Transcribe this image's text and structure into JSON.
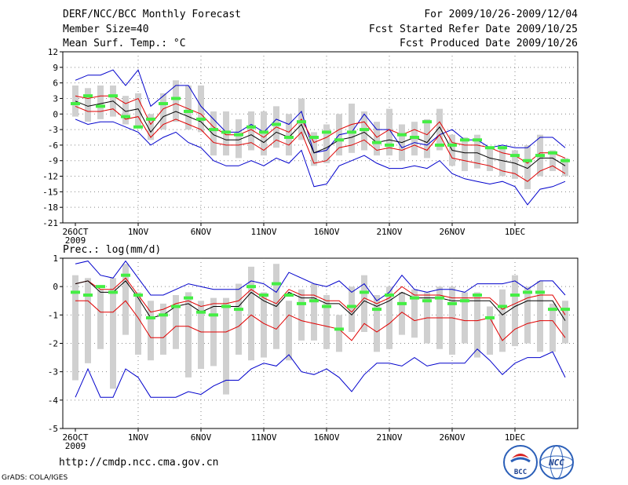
{
  "header": {
    "title": "DERF/NCC/BCC Monthly Forecast",
    "member": "Member Size=40",
    "variable1": "Mean Surf. Temp.: °C",
    "period": "For 2009/10/26-2009/12/04",
    "refer": "Fcst Started Refer Date 2009/10/25",
    "produced": "Fcst Produced Date 2009/10/26"
  },
  "footer": {
    "url": "http://cmdp.ncc.cma.gov.cn",
    "grads": "GrADS: COLA/IGES",
    "logo1": "BCC",
    "logo2": "NCC"
  },
  "colors": {
    "mean": "#000000",
    "spread": "#e00000",
    "extreme": "#0000cc",
    "obs": "#44ee44",
    "box": "#d0d0d0"
  },
  "chart_data": [
    {
      "type": "line",
      "title": "Mean Surf. Temp.: °C",
      "x": [
        1,
        2,
        3,
        4,
        5,
        6,
        7,
        8,
        9,
        10,
        11,
        12,
        13,
        14,
        15,
        16,
        17,
        18,
        19,
        20,
        21,
        22,
        23,
        24,
        25,
        26,
        27,
        28,
        29,
        30,
        31,
        32,
        33,
        34,
        35,
        36,
        37,
        38,
        39,
        40
      ],
      "xticks": [
        {
          "day": 1,
          "label": "26OCT",
          "sub": "2009"
        },
        {
          "day": 6,
          "label": "1NOV"
        },
        {
          "day": 11,
          "label": "6NOV"
        },
        {
          "day": 16,
          "label": "11NOV"
        },
        {
          "day": 21,
          "label": "16NOV"
        },
        {
          "day": 26,
          "label": "21NOV"
        },
        {
          "day": 31,
          "label": "26NOV"
        },
        {
          "day": 36,
          "label": "1DEC"
        }
      ],
      "ylim": [
        -21,
        12
      ],
      "yticks": [
        12,
        9,
        6,
        3,
        0,
        -3,
        -6,
        -9,
        -12,
        -15,
        -18,
        -21
      ],
      "series": [
        {
          "name": "max",
          "color": "#0000cc",
          "values": [
            6.5,
            7.5,
            7.5,
            8.5,
            5.5,
            8.5,
            1.5,
            3.5,
            5.5,
            5.5,
            1.5,
            -1.0,
            -3.5,
            -3.5,
            -2.0,
            -3.5,
            -1.0,
            -2.0,
            0.5,
            -7.5,
            -7.0,
            -4.0,
            -3.5,
            0.0,
            -3.0,
            -3.0,
            -6.5,
            -5.5,
            -6.0,
            -4.0,
            -3.0,
            -5.0,
            -5.0,
            -6.5,
            -6.0,
            -6.5,
            -6.5,
            -4.5,
            -4.5,
            -6.5
          ]
        },
        {
          "name": "upper",
          "color": "#e00000",
          "values": [
            3.5,
            3.0,
            3.5,
            3.5,
            2.0,
            3.0,
            -2.0,
            1.0,
            2.0,
            1.0,
            0.0,
            -2.5,
            -4.0,
            -4.0,
            -3.0,
            -4.5,
            -2.5,
            -3.5,
            -1.0,
            -5.5,
            -4.5,
            -3.0,
            -2.0,
            -1.5,
            -4.5,
            -3.0,
            -4.0,
            -3.0,
            -4.0,
            -1.5,
            -5.5,
            -6.0,
            -6.0,
            -6.5,
            -7.5,
            -8.0,
            -9.5,
            -7.5,
            -7.5,
            -8.5
          ]
        },
        {
          "name": "mean",
          "color": "#000000",
          "values": [
            2.5,
            1.5,
            2.0,
            2.5,
            0.5,
            1.0,
            -3.5,
            -0.5,
            0.5,
            -0.5,
            -1.5,
            -4.0,
            -5.0,
            -5.0,
            -4.0,
            -5.5,
            -3.5,
            -4.5,
            -2.0,
            -7.5,
            -6.5,
            -5.0,
            -4.5,
            -3.5,
            -5.5,
            -5.0,
            -5.5,
            -4.5,
            -5.5,
            -2.5,
            -7.0,
            -7.5,
            -7.5,
            -8.5,
            -9.0,
            -9.5,
            -10.5,
            -8.5,
            -8.5,
            -10.0
          ]
        },
        {
          "name": "lower",
          "color": "#e00000",
          "values": [
            1.5,
            0.5,
            0.5,
            1.0,
            -1.0,
            -0.5,
            -4.5,
            -2.0,
            -1.0,
            -2.0,
            -3.0,
            -5.5,
            -6.0,
            -6.0,
            -5.5,
            -7.0,
            -5.0,
            -6.0,
            -3.5,
            -9.5,
            -9.0,
            -6.5,
            -6.0,
            -5.0,
            -7.0,
            -6.5,
            -7.0,
            -6.0,
            -7.0,
            -4.0,
            -8.5,
            -9.0,
            -9.5,
            -10.0,
            -11.0,
            -11.5,
            -13.0,
            -11.0,
            -10.0,
            -11.5
          ]
        },
        {
          "name": "min",
          "color": "#0000cc",
          "values": [
            -1.0,
            -2.0,
            -1.5,
            -1.5,
            -2.5,
            -3.5,
            -6.0,
            -4.5,
            -3.5,
            -5.5,
            -6.5,
            -9.0,
            -10.0,
            -10.0,
            -9.0,
            -10.0,
            -8.5,
            -9.5,
            -7.0,
            -14.0,
            -13.5,
            -10.0,
            -9.0,
            -8.0,
            -9.5,
            -10.5,
            -10.5,
            -10.0,
            -10.5,
            -9.0,
            -11.5,
            -12.5,
            -13.0,
            -13.5,
            -13.0,
            -14.0,
            -17.5,
            -14.5,
            -14.0,
            -13.0
          ]
        },
        {
          "name": "observed",
          "color": "#44ee44",
          "values": [
            2.0,
            3.5,
            1.5,
            3.5,
            -0.5,
            -2.5,
            -1.0,
            2.0,
            3.0,
            0.5,
            -1.0,
            -3.0,
            -3.5,
            -4.0,
            -2.5,
            -3.5,
            -2.0,
            -4.5,
            -1.5,
            -4.5,
            -3.5,
            -5.0,
            -3.5,
            -3.0,
            -5.5,
            -6.0,
            -4.0,
            -4.5,
            -1.5,
            -6.0,
            -6.0,
            -5.0,
            -5.0,
            -6.5,
            -6.5,
            -8.0,
            -9.0,
            -8.0,
            -7.5,
            -9.0
          ]
        }
      ],
      "boxes": [
        [
          -0.5,
          5.5
        ],
        [
          -1.5,
          5.0
        ],
        [
          -1.0,
          5.5
        ],
        [
          -0.5,
          5.5
        ],
        [
          -2.0,
          3.5
        ],
        [
          -2.5,
          4.0
        ],
        [
          -5.0,
          0.0
        ],
        [
          -3.0,
          4.0
        ],
        [
          -1.5,
          6.5
        ],
        [
          -3.0,
          5.5
        ],
        [
          -3.5,
          5.5
        ],
        [
          -8.0,
          0.5
        ],
        [
          -8.0,
          0.5
        ],
        [
          -8.5,
          -1.0
        ],
        [
          -7.0,
          0.5
        ],
        [
          -8.0,
          0.5
        ],
        [
          -6.5,
          1.5
        ],
        [
          -8.0,
          0.0
        ],
        [
          -5.0,
          3.0
        ],
        [
          -10.0,
          -3.5
        ],
        [
          -9.5,
          -2.0
        ],
        [
          -8.0,
          0.0
        ],
        [
          -7.5,
          2.0
        ],
        [
          -7.0,
          0.5
        ],
        [
          -8.0,
          -1.5
        ],
        [
          -8.0,
          1.0
        ],
        [
          -9.0,
          -2.0
        ],
        [
          -8.0,
          -1.5
        ],
        [
          -8.5,
          -1.0
        ],
        [
          -7.0,
          1.0
        ],
        [
          -10.0,
          -4.0
        ],
        [
          -11.0,
          -4.5
        ],
        [
          -10.5,
          -4.0
        ],
        [
          -11.0,
          -6.5
        ],
        [
          -12.0,
          -6.5
        ],
        [
          -12.5,
          -7.0
        ],
        [
          -14.5,
          -6.0
        ],
        [
          -12.0,
          -4.0
        ],
        [
          -11.0,
          -7.0
        ],
        [
          -12.0,
          -8.5
        ]
      ]
    },
    {
      "type": "line",
      "title": "Prec.: log(mm/d)",
      "x": [
        1,
        2,
        3,
        4,
        5,
        6,
        7,
        8,
        9,
        10,
        11,
        12,
        13,
        14,
        15,
        16,
        17,
        18,
        19,
        20,
        21,
        22,
        23,
        24,
        25,
        26,
        27,
        28,
        29,
        30,
        31,
        32,
        33,
        34,
        35,
        36,
        37,
        38,
        39,
        40
      ],
      "xticks": [
        {
          "day": 1,
          "label": "26OCT",
          "sub": "2009"
        },
        {
          "day": 6,
          "label": "1NOV"
        },
        {
          "day": 11,
          "label": "6NOV"
        },
        {
          "day": 16,
          "label": "11NOV"
        },
        {
          "day": 21,
          "label": "16NOV"
        },
        {
          "day": 26,
          "label": "21NOV"
        },
        {
          "day": 31,
          "label": "26NOV"
        },
        {
          "day": 36,
          "label": "1DEC"
        }
      ],
      "ylim": [
        -5,
        1
      ],
      "yticks": [
        1,
        0,
        -1,
        -2,
        -3,
        -4,
        -5
      ],
      "series": [
        {
          "name": "max",
          "color": "#0000cc",
          "values": [
            0.8,
            0.9,
            0.4,
            0.3,
            0.9,
            0.3,
            -0.3,
            -0.3,
            -0.1,
            0.1,
            0.0,
            -0.1,
            -0.1,
            -0.1,
            0.2,
            0.1,
            -0.2,
            0.5,
            0.3,
            0.1,
            0.0,
            0.2,
            -0.2,
            0.1,
            -0.5,
            -0.2,
            0.4,
            -0.1,
            -0.2,
            -0.1,
            -0.1,
            -0.2,
            0.1,
            0.1,
            0.1,
            0.2,
            -0.1,
            0.2,
            0.2,
            -0.3
          ]
        },
        {
          "name": "upper",
          "color": "#e00000",
          "values": [
            0.1,
            0.2,
            -0.1,
            -0.1,
            0.3,
            -0.3,
            -0.9,
            -0.8,
            -0.6,
            -0.5,
            -0.7,
            -0.6,
            -0.6,
            -0.5,
            -0.1,
            -0.4,
            -0.6,
            -0.1,
            -0.3,
            -0.3,
            -0.5,
            -0.5,
            -0.9,
            -0.4,
            -0.6,
            -0.4,
            0.0,
            -0.3,
            -0.3,
            -0.3,
            -0.4,
            -0.4,
            -0.4,
            -0.4,
            -0.8,
            -0.6,
            -0.4,
            -0.3,
            -0.3,
            -1.0
          ]
        },
        {
          "name": "mean",
          "color": "#000000",
          "values": [
            0.1,
            0.2,
            -0.2,
            -0.2,
            0.2,
            -0.4,
            -1.1,
            -1.0,
            -0.7,
            -0.6,
            -0.9,
            -0.7,
            -0.7,
            -0.7,
            -0.2,
            -0.5,
            -0.7,
            -0.2,
            -0.4,
            -0.4,
            -0.6,
            -0.6,
            -1.0,
            -0.5,
            -0.7,
            -0.5,
            -0.2,
            -0.4,
            -0.4,
            -0.4,
            -0.5,
            -0.5,
            -0.5,
            -0.5,
            -1.0,
            -0.7,
            -0.5,
            -0.5,
            -0.5,
            -1.2
          ]
        },
        {
          "name": "lower",
          "color": "#e00000",
          "values": [
            -0.5,
            -0.5,
            -0.9,
            -0.9,
            -0.5,
            -1.1,
            -1.8,
            -1.8,
            -1.4,
            -1.4,
            -1.6,
            -1.6,
            -1.6,
            -1.4,
            -1.0,
            -1.3,
            -1.5,
            -1.0,
            -1.2,
            -1.3,
            -1.4,
            -1.5,
            -1.9,
            -1.3,
            -1.6,
            -1.3,
            -0.9,
            -1.2,
            -1.1,
            -1.1,
            -1.1,
            -1.2,
            -1.2,
            -1.1,
            -1.9,
            -1.5,
            -1.3,
            -1.2,
            -1.2,
            -1.8
          ]
        },
        {
          "name": "min",
          "color": "#0000cc",
          "values": [
            -3.9,
            -2.9,
            -3.9,
            -3.9,
            -2.9,
            -3.2,
            -3.9,
            -3.9,
            -3.9,
            -3.7,
            -3.8,
            -3.5,
            -3.3,
            -3.3,
            -2.9,
            -2.7,
            -2.8,
            -2.4,
            -3.0,
            -3.1,
            -2.9,
            -3.2,
            -3.7,
            -3.1,
            -2.7,
            -2.7,
            -2.8,
            -2.5,
            -2.8,
            -2.7,
            -2.7,
            -2.7,
            -2.2,
            -2.6,
            -3.1,
            -2.7,
            -2.5,
            -2.5,
            -2.3,
            -3.2
          ]
        },
        {
          "name": "observed",
          "color": "#44ee44",
          "values": [
            -0.2,
            -0.3,
            0.0,
            -0.2,
            0.4,
            -0.3,
            -1.1,
            -1.0,
            -0.7,
            -0.4,
            -0.9,
            -1.0,
            -0.7,
            -0.8,
            0.0,
            -0.3,
            0.1,
            -0.3,
            -0.6,
            -0.5,
            -0.7,
            -1.5,
            -0.7,
            -0.2,
            -0.8,
            -0.3,
            -0.6,
            -0.4,
            -0.5,
            -0.4,
            -0.6,
            -0.5,
            -0.3,
            -1.1,
            -0.7,
            -0.3,
            -0.2,
            -0.2,
            -0.8,
            -0.8
          ]
        }
      ],
      "boxes": [
        [
          -3.3,
          0.4
        ],
        [
          -2.7,
          0.3
        ],
        [
          -2.2,
          -0.1
        ],
        [
          -3.6,
          0.3
        ],
        [
          -1.7,
          0.8
        ],
        [
          -2.4,
          -0.2
        ],
        [
          -2.6,
          -0.5
        ],
        [
          -2.4,
          -0.6
        ],
        [
          -2.2,
          -0.3
        ],
        [
          -3.2,
          -0.2
        ],
        [
          -2.9,
          -0.5
        ],
        [
          -2.8,
          -0.4
        ],
        [
          -3.8,
          -0.4
        ],
        [
          -2.4,
          0.1
        ],
        [
          -2.6,
          0.7
        ],
        [
          -2.5,
          -0.2
        ],
        [
          -2.2,
          0.8
        ],
        [
          -2.6,
          -0.5
        ],
        [
          -1.9,
          -0.1
        ],
        [
          -1.9,
          0.1
        ],
        [
          -2.2,
          -0.3
        ],
        [
          -2.3,
          -1.0
        ],
        [
          -1.6,
          0.0
        ],
        [
          -1.6,
          0.4
        ],
        [
          -2.3,
          -0.3
        ],
        [
          -2.2,
          0.0
        ],
        [
          -1.7,
          -0.2
        ],
        [
          -1.8,
          -0.1
        ],
        [
          -2.0,
          -0.2
        ],
        [
          -2.2,
          0.0
        ],
        [
          -2.4,
          0.0
        ],
        [
          -2.0,
          -0.2
        ],
        [
          -2.5,
          -0.2
        ],
        [
          -2.4,
          -0.7
        ],
        [
          -2.3,
          -0.1
        ],
        [
          -2.1,
          0.4
        ],
        [
          -2.0,
          0.0
        ],
        [
          -2.3,
          0.2
        ],
        [
          -2.3,
          -0.6
        ],
        [
          -2.0,
          -0.5
        ]
      ]
    }
  ]
}
